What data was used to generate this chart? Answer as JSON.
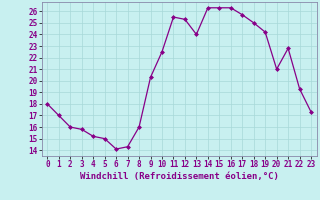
{
  "x": [
    0,
    1,
    2,
    3,
    4,
    5,
    6,
    7,
    8,
    9,
    10,
    11,
    12,
    13,
    14,
    15,
    16,
    17,
    18,
    19,
    20,
    21,
    22,
    23
  ],
  "y": [
    18.0,
    17.0,
    16.0,
    15.8,
    15.2,
    15.0,
    14.1,
    14.3,
    16.0,
    20.3,
    22.5,
    25.5,
    25.3,
    24.0,
    26.3,
    26.3,
    26.3,
    25.7,
    25.0,
    24.2,
    21.0,
    22.8,
    19.3,
    17.3
  ],
  "line_color": "#880088",
  "marker": "D",
  "marker_size": 2,
  "bg_color": "#c8f0f0",
  "grid_color": "#a8d8d8",
  "xlabel": "Windchill (Refroidissement éolien,°C)",
  "xlim": [
    -0.5,
    23.5
  ],
  "ylim": [
    13.5,
    26.8
  ],
  "yticks": [
    14,
    15,
    16,
    17,
    18,
    19,
    20,
    21,
    22,
    23,
    24,
    25,
    26
  ],
  "xticks": [
    0,
    1,
    2,
    3,
    4,
    5,
    6,
    7,
    8,
    9,
    10,
    11,
    12,
    13,
    14,
    15,
    16,
    17,
    18,
    19,
    20,
    21,
    22,
    23
  ],
  "xlabel_fontsize": 6.5,
  "tick_fontsize": 5.5,
  "spine_color": "#8888aa",
  "linewidth": 0.9
}
